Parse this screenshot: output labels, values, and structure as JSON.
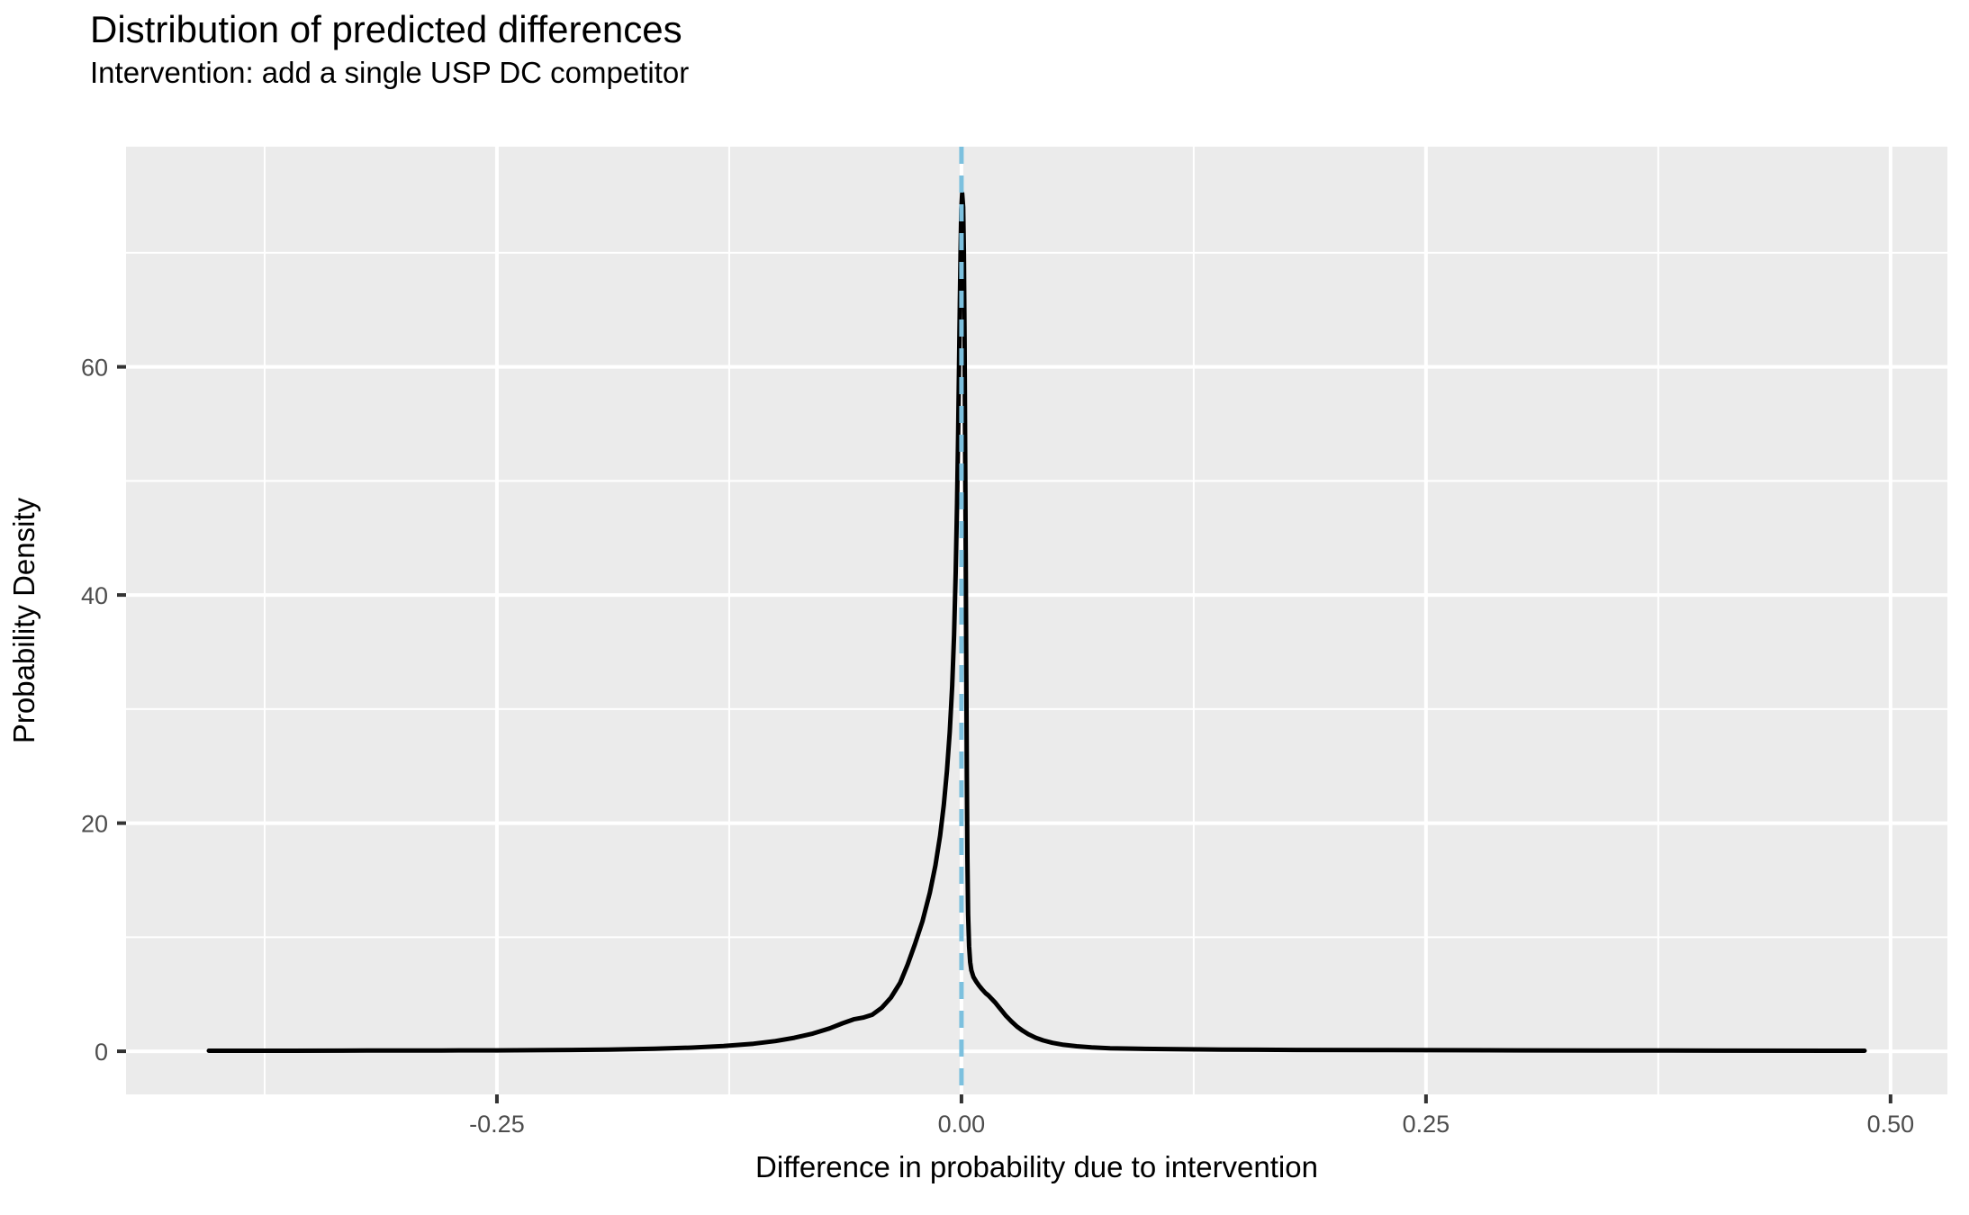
{
  "chart_data": {
    "type": "line",
    "subtype": "density",
    "title": "Distribution of predicted differences",
    "subtitle": "Intervention: add a single USP DC competitor",
    "xlabel": "Difference in probability due to intervention",
    "ylabel": "Probability Density",
    "xlim": [
      -0.4496,
      0.5306
    ],
    "ylim": [
      -3.78,
      79.3
    ],
    "x_major_ticks": [
      {
        "value": -0.25,
        "label": "-0.25"
      },
      {
        "value": 0.0,
        "label": "0.00"
      },
      {
        "value": 0.25,
        "label": "0.25"
      },
      {
        "value": 0.5,
        "label": "0.50"
      }
    ],
    "y_major_ticks": [
      {
        "value": 0,
        "label": "0"
      },
      {
        "value": 20,
        "label": "20"
      },
      {
        "value": 40,
        "label": "40"
      },
      {
        "value": 60,
        "label": "60"
      }
    ],
    "x_minor_ticks": [
      -0.375,
      -0.125,
      0.125,
      0.375
    ],
    "y_minor_ticks": [
      10,
      30,
      50,
      70
    ],
    "grid": true,
    "legend_position": "none",
    "panel_background": "#EBEBEB",
    "grid_color": "#FFFFFF",
    "tick_label_color": "#4D4D4D",
    "tick_mark_color": "#333333",
    "reference_line": {
      "x": 0,
      "linetype": "dashed",
      "color": "#7CC0DE"
    },
    "series": [
      {
        "name": "predicted-difference-density",
        "color": "#000000",
        "points": [
          [
            -0.405,
            0.05
          ],
          [
            -0.36,
            0.05
          ],
          [
            -0.32,
            0.06
          ],
          [
            -0.28,
            0.07
          ],
          [
            -0.25,
            0.08
          ],
          [
            -0.22,
            0.1
          ],
          [
            -0.19,
            0.15
          ],
          [
            -0.165,
            0.22
          ],
          [
            -0.145,
            0.32
          ],
          [
            -0.128,
            0.46
          ],
          [
            -0.112,
            0.66
          ],
          [
            -0.1,
            0.9
          ],
          [
            -0.09,
            1.18
          ],
          [
            -0.08,
            1.55
          ],
          [
            -0.071,
            2.0
          ],
          [
            -0.064,
            2.45
          ],
          [
            -0.058,
            2.8
          ],
          [
            -0.053,
            2.95
          ],
          [
            -0.048,
            3.2
          ],
          [
            -0.043,
            3.8
          ],
          [
            -0.038,
            4.7
          ],
          [
            -0.033,
            6.0
          ],
          [
            -0.029,
            7.6
          ],
          [
            -0.025,
            9.4
          ],
          [
            -0.021,
            11.4
          ],
          [
            -0.017,
            13.9
          ],
          [
            -0.014,
            16.3
          ],
          [
            -0.0115,
            18.9
          ],
          [
            -0.0095,
            21.6
          ],
          [
            -0.0078,
            24.6
          ],
          [
            -0.0063,
            28.0
          ],
          [
            -0.005,
            32.0
          ],
          [
            -0.004,
            36.5
          ],
          [
            -0.0031,
            42.0
          ],
          [
            -0.0024,
            48.0
          ],
          [
            -0.0018,
            54.0
          ],
          [
            -0.0013,
            60.0
          ],
          [
            -0.0009,
            65.5
          ],
          [
            -0.0005,
            70.0
          ],
          [
            -0.0001,
            73.8
          ],
          [
            0.0004,
            75.2
          ],
          [
            0.0009,
            74.0
          ],
          [
            0.0013,
            70.0
          ],
          [
            0.0017,
            62.0
          ],
          [
            0.002,
            53.0
          ],
          [
            0.0023,
            43.0
          ],
          [
            0.0026,
            33.0
          ],
          [
            0.0029,
            24.0
          ],
          [
            0.0032,
            17.0
          ],
          [
            0.0036,
            12.0
          ],
          [
            0.0041,
            9.2
          ],
          [
            0.0047,
            7.8
          ],
          [
            0.0053,
            7.1
          ],
          [
            0.0065,
            6.5
          ],
          [
            0.008,
            6.1
          ],
          [
            0.0095,
            5.75
          ],
          [
            0.011,
            5.45
          ],
          [
            0.013,
            5.1
          ],
          [
            0.0145,
            4.9
          ],
          [
            0.016,
            4.65
          ],
          [
            0.018,
            4.3
          ],
          [
            0.02,
            3.9
          ],
          [
            0.022,
            3.5
          ],
          [
            0.024,
            3.1
          ],
          [
            0.027,
            2.6
          ],
          [
            0.03,
            2.15
          ],
          [
            0.033,
            1.8
          ],
          [
            0.036,
            1.5
          ],
          [
            0.04,
            1.18
          ],
          [
            0.044,
            0.95
          ],
          [
            0.049,
            0.74
          ],
          [
            0.055,
            0.57
          ],
          [
            0.062,
            0.44
          ],
          [
            0.07,
            0.35
          ],
          [
            0.08,
            0.27
          ],
          [
            0.095,
            0.22
          ],
          [
            0.115,
            0.18
          ],
          [
            0.14,
            0.15
          ],
          [
            0.18,
            0.12
          ],
          [
            0.23,
            0.1
          ],
          [
            0.3,
            0.08
          ],
          [
            0.38,
            0.06
          ],
          [
            0.486,
            0.05
          ]
        ]
      }
    ]
  }
}
